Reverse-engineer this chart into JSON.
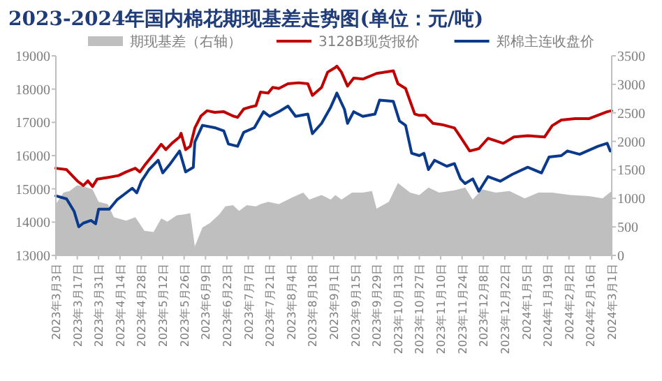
{
  "chart_data": {
    "type": "line",
    "title": "2023-2024年国内棉花期现基差走势图(单位：元/吨)",
    "legend": "top",
    "xlim": [
      "2023-03-03",
      "2024-03-01"
    ],
    "xticks": [
      {
        "value": "2023-03-03",
        "label": "2023年3月3日"
      },
      {
        "value": "2023-03-17",
        "label": "2023年3月17日"
      },
      {
        "value": "2023-03-31",
        "label": "2023年3月31日"
      },
      {
        "value": "2023-04-14",
        "label": "2023年4月14日"
      },
      {
        "value": "2023-04-28",
        "label": "2023年4月28日"
      },
      {
        "value": "2023-05-12",
        "label": "2023年5月12日"
      },
      {
        "value": "2023-05-26",
        "label": "2023年5月26日"
      },
      {
        "value": "2023-06-09",
        "label": "2023年6月9日"
      },
      {
        "value": "2023-06-23",
        "label": "2023年6月23日"
      },
      {
        "value": "2023-07-07",
        "label": "2023年7月7日"
      },
      {
        "value": "2023-07-21",
        "label": "2023年7月21日"
      },
      {
        "value": "2023-08-04",
        "label": "2023年8月4日"
      },
      {
        "value": "2023-08-18",
        "label": "2023年8月18日"
      },
      {
        "value": "2023-09-01",
        "label": "2023年9月1日"
      },
      {
        "value": "2023-09-15",
        "label": "2023年9月15日"
      },
      {
        "value": "2023-09-29",
        "label": "2023年9月29日"
      },
      {
        "value": "2023-10-13",
        "label": "2023年10月13日"
      },
      {
        "value": "2023-10-27",
        "label": "2023年10月27日"
      },
      {
        "value": "2023-11-10",
        "label": "2023年11月10日"
      },
      {
        "value": "2023-11-24",
        "label": "2023年11月24日"
      },
      {
        "value": "2023-12-08",
        "label": "2023年12月8日"
      },
      {
        "value": "2023-12-22",
        "label": "2023年12月22日"
      },
      {
        "value": "2024-01-05",
        "label": "2024年1月5日"
      },
      {
        "value": "2024-01-19",
        "label": "2024年1月19日"
      },
      {
        "value": "2024-02-02",
        "label": "2024年2月2日"
      },
      {
        "value": "2024-02-16",
        "label": "2024年2月16日"
      },
      {
        "value": "2024-03-01",
        "label": "2024年3月1日"
      }
    ],
    "ylim": [
      13000,
      19000
    ],
    "yticks": [
      13000,
      14000,
      15000,
      16000,
      17000,
      18000,
      19000
    ],
    "y2lim": [
      0,
      3500
    ],
    "y2ticks": [
      0,
      500,
      1000,
      1500,
      2000,
      2500,
      3000,
      3500
    ],
    "series": [
      {
        "name": "期现基差（右轴）",
        "type": "area",
        "axis": "y2",
        "color": "#bfbfbf",
        "x": [
          "2023-03-03",
          "2023-03-08",
          "2023-03-12",
          "2023-03-17",
          "2023-03-21",
          "2023-03-27",
          "2023-03-31",
          "2023-04-06",
          "2023-04-10",
          "2023-04-18",
          "2023-04-24",
          "2023-04-30",
          "2023-05-06",
          "2023-05-11",
          "2023-05-15",
          "2023-05-21",
          "2023-05-26",
          "2023-05-30",
          "2023-06-02",
          "2023-06-07",
          "2023-06-12",
          "2023-06-18",
          "2023-06-22",
          "2023-06-27",
          "2023-07-01",
          "2023-07-06",
          "2023-07-12",
          "2023-07-15",
          "2023-07-20",
          "2023-07-27",
          "2023-08-05",
          "2023-08-12",
          "2023-08-16",
          "2023-08-24",
          "2023-08-30",
          "2023-09-02",
          "2023-09-06",
          "2023-09-13",
          "2023-09-20",
          "2023-09-26",
          "2023-09-29",
          "2023-10-07",
          "2023-10-13",
          "2023-10-21",
          "2023-10-27",
          "2023-11-02",
          "2023-11-09",
          "2023-11-19",
          "2023-11-26",
          "2023-12-01",
          "2023-12-07",
          "2023-12-16",
          "2023-12-25",
          "2024-01-04",
          "2024-01-13",
          "2024-01-22",
          "2024-02-03",
          "2024-02-15",
          "2024-02-24",
          "2024-03-01"
        ],
        "values": [
          900,
          1100,
          1130,
          1230,
          1210,
          1160,
          940,
          900,
          670,
          610,
          670,
          430,
          410,
          650,
          590,
          700,
          720,
          740,
          160,
          490,
          570,
          720,
          860,
          880,
          780,
          880,
          860,
          900,
          940,
          900,
          1020,
          1100,
          980,
          1060,
          980,
          1060,
          980,
          1100,
          1100,
          1130,
          820,
          940,
          1270,
          1100,
          1060,
          1190,
          1100,
          1140,
          1190,
          980,
          1160,
          1100,
          1130,
          1000,
          1100,
          1100,
          1060,
          1040,
          1000,
          1130
        ]
      },
      {
        "name": "3128B现货报价",
        "color": "#c00000",
        "x": [
          "2023-03-03",
          "2023-03-10",
          "2023-03-17",
          "2023-03-21",
          "2023-03-24",
          "2023-03-27",
          "2023-03-30",
          "2023-04-07",
          "2023-04-13",
          "2023-04-18",
          "2023-04-24",
          "2023-04-27",
          "2023-05-01",
          "2023-05-06",
          "2023-05-11",
          "2023-05-14",
          "2023-05-18",
          "2023-05-23",
          "2023-05-24",
          "2023-05-27",
          "2023-05-30",
          "2023-06-02",
          "2023-06-06",
          "2023-06-10",
          "2023-06-15",
          "2023-06-21",
          "2023-06-27",
          "2023-06-30",
          "2023-07-04",
          "2023-07-09",
          "2023-07-12",
          "2023-07-15",
          "2023-07-20",
          "2023-07-23",
          "2023-07-27",
          "2023-08-02",
          "2023-08-09",
          "2023-08-15",
          "2023-08-18",
          "2023-08-24",
          "2023-08-28",
          "2023-09-02",
          "2023-09-03",
          "2023-09-06",
          "2023-09-10",
          "2023-09-14",
          "2023-09-20",
          "2023-09-29",
          "2023-10-10",
          "2023-10-13",
          "2023-10-18",
          "2023-10-24",
          "2023-10-27",
          "2023-10-31",
          "2023-11-05",
          "2023-11-11",
          "2023-11-19",
          "2023-11-23",
          "2023-11-29",
          "2023-12-05",
          "2023-12-11",
          "2023-12-21",
          "2023-12-28",
          "2024-01-06",
          "2024-01-17",
          "2024-01-22",
          "2024-01-28",
          "2024-02-06",
          "2024-02-15",
          "2024-02-27",
          "2024-03-01"
        ],
        "values": [
          15620,
          15580,
          15240,
          15100,
          15240,
          15070,
          15290,
          15350,
          15400,
          15510,
          15620,
          15510,
          15760,
          16040,
          16340,
          16180,
          16370,
          16560,
          16670,
          16180,
          16280,
          16830,
          17190,
          17350,
          17300,
          17320,
          17190,
          17150,
          17400,
          17470,
          17500,
          17910,
          17880,
          18050,
          18020,
          18160,
          18190,
          18160,
          17810,
          18050,
          18510,
          18650,
          18690,
          18510,
          18090,
          18330,
          18300,
          18470,
          18550,
          18160,
          18020,
          17250,
          17210,
          17210,
          16970,
          16930,
          16830,
          16560,
          16140,
          16210,
          16520,
          16370,
          16560,
          16600,
          16560,
          16900,
          17070,
          17110,
          17110,
          17320,
          17350
        ]
      },
      {
        "name": "郑棉主连收盘价",
        "color": "#0b3a8c",
        "x": [
          "2023-03-03",
          "2023-03-10",
          "2023-03-15",
          "2023-03-18",
          "2023-03-21",
          "2023-03-26",
          "2023-03-29",
          "2023-03-31",
          "2023-04-07",
          "2023-04-12",
          "2023-04-16",
          "2023-04-22",
          "2023-04-25",
          "2023-04-28",
          "2023-05-03",
          "2023-05-09",
          "2023-05-12",
          "2023-05-17",
          "2023-05-23",
          "2023-05-27",
          "2023-06-01",
          "2023-06-02",
          "2023-06-07",
          "2023-06-15",
          "2023-06-21",
          "2023-06-24",
          "2023-06-30",
          "2023-07-04",
          "2023-07-11",
          "2023-07-17",
          "2023-07-21",
          "2023-07-27",
          "2023-08-02",
          "2023-08-07",
          "2023-08-15",
          "2023-08-18",
          "2023-08-24",
          "2023-08-30",
          "2023-09-02",
          "2023-09-03",
          "2023-09-08",
          "2023-09-10",
          "2023-09-14",
          "2023-09-20",
          "2023-09-28",
          "2023-10-01",
          "2023-10-10",
          "2023-10-14",
          "2023-10-18",
          "2023-10-22",
          "2023-10-27",
          "2023-10-30",
          "2023-11-02",
          "2023-11-06",
          "2023-11-14",
          "2023-11-19",
          "2023-11-23",
          "2023-11-26",
          "2023-12-01",
          "2023-12-05",
          "2023-12-11",
          "2023-12-19",
          "2023-12-27",
          "2024-01-06",
          "2024-01-15",
          "2024-01-20",
          "2024-01-28",
          "2024-02-01",
          "2024-02-09",
          "2024-02-21",
          "2024-02-27",
          "2024-02-29"
        ],
        "values": [
          14790,
          14700,
          14320,
          13860,
          13970,
          14050,
          13950,
          14390,
          14390,
          14670,
          14810,
          15020,
          14880,
          15230,
          15580,
          15860,
          15480,
          15760,
          16140,
          15510,
          15650,
          16410,
          16910,
          16840,
          16740,
          16350,
          16280,
          16700,
          16840,
          17320,
          17180,
          17320,
          17490,
          17180,
          17250,
          16660,
          16970,
          17460,
          17770,
          17880,
          17390,
          16970,
          17320,
          17180,
          17250,
          17670,
          17630,
          17040,
          16910,
          16070,
          16000,
          16070,
          15580,
          15860,
          15680,
          15760,
          15300,
          15160,
          15300,
          14930,
          15370,
          15230,
          15440,
          15650,
          15480,
          15960,
          16000,
          16140,
          16040,
          16280,
          16370,
          16140
        ]
      }
    ]
  }
}
